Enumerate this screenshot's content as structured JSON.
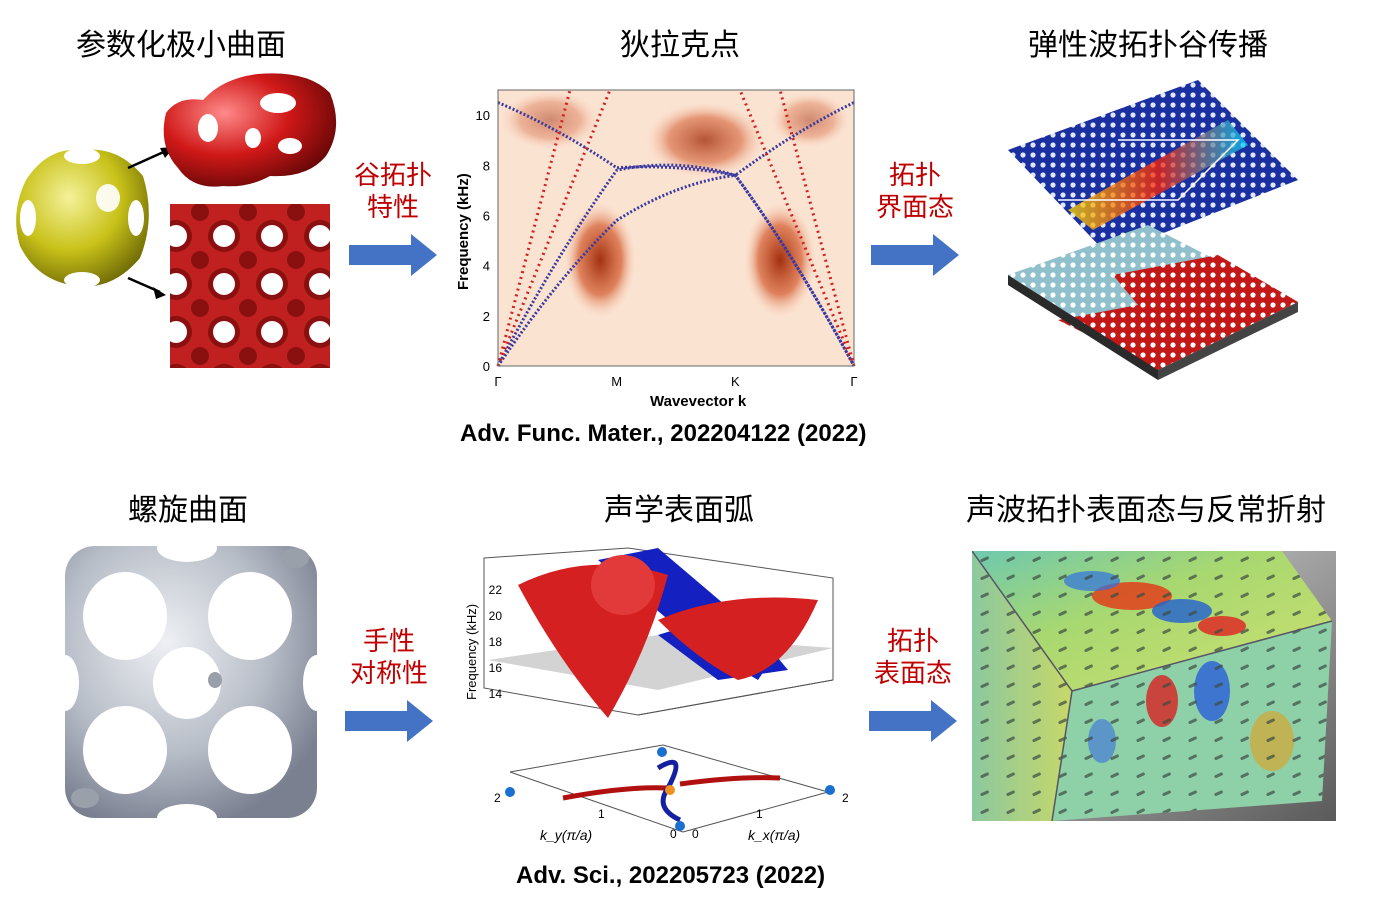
{
  "titles": {
    "top_left": "参数化极小曲面",
    "top_mid": "狄拉克点",
    "top_right": "弹性波拓扑谷传播",
    "bottom_left": "螺旋曲面",
    "bottom_mid": "声学表面弧",
    "bottom_right": "声波拓扑表面态与反常折射"
  },
  "arrows": {
    "a1": [
      "谷拓扑",
      "特性"
    ],
    "a2": [
      "拓扑",
      "界面态"
    ],
    "a3": [
      "手性",
      "对称性"
    ],
    "a4": [
      "拓扑",
      "表面态"
    ]
  },
  "citations": {
    "top": "Adv. Func. Mater., 202204122 (2022)",
    "bottom": "Adv. Sci., 202205723 (2022)"
  },
  "colors": {
    "arrow": "#4472c4",
    "label_red": "#c00000",
    "band_blue": "#3a3aa0",
    "band_red": "#d22020"
  },
  "chart_data": [
    {
      "type": "line",
      "xlabel": "Wavevector k",
      "ylabel": "Frequency (kHz)",
      "ylim": [
        0,
        11
      ],
      "yticks": [
        "0",
        "2",
        "4",
        "6",
        "8",
        "10"
      ],
      "xticks": [
        "Γ",
        "M",
        "K",
        "Γ"
      ],
      "series": [
        {
          "values": [
            0,
            5.8,
            7.6,
            0
          ]
        },
        {
          "values": [
            0,
            7.8,
            7.6,
            0
          ]
        },
        {
          "values": [
            10.5,
            7.9,
            7.6,
            10.5
          ]
        }
      ]
    },
    {
      "type": "surface",
      "ylabel": "Frequency (kHz)",
      "zticks": [
        "14",
        "16",
        "18",
        "20",
        "22"
      ],
      "kx_label": "k_x(π/a)",
      "ky_label": "k_y(π/a)",
      "kx_ticks": [
        "0",
        "1",
        "2"
      ],
      "ky_ticks": [
        "0",
        "1",
        "2"
      ]
    }
  ]
}
